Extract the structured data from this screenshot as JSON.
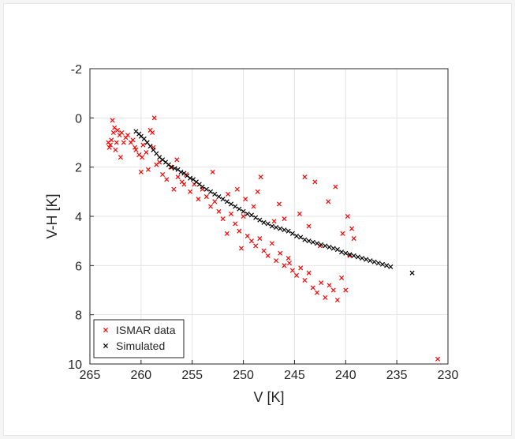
{
  "chart_data": {
    "type": "scatter",
    "xlabel": "V [K]",
    "ylabel": "V-H [K]",
    "xlim": [
      265,
      230
    ],
    "ylim": [
      -2,
      10
    ],
    "x_reversed": true,
    "y_reversed": true,
    "grid": true,
    "legend_placement": "bottom-left",
    "x_ticks": [
      "265",
      "260",
      "255",
      "250",
      "245",
      "240",
      "235",
      "230"
    ],
    "y_ticks": [
      "-2",
      "0",
      "2",
      "4",
      "6",
      "8",
      "10"
    ],
    "marker": "x",
    "series": [
      {
        "name": "ISMAR data",
        "color": "#ff0000",
        "x": [
          263.0,
          262.8,
          263.1,
          262.6,
          262.9,
          262.4,
          262.7,
          262.5,
          263.2,
          262.3,
          262.1,
          261.9,
          261.7,
          261.5,
          262.0,
          261.3,
          261.0,
          260.8,
          260.5,
          260.2,
          259.9,
          259.5,
          259.1,
          258.8,
          258.5,
          258.7,
          259.3,
          260.0,
          259.8,
          258.2,
          257.9,
          257.5,
          257.1,
          256.8,
          256.4,
          256.0,
          255.6,
          255.2,
          254.8,
          254.4,
          254.0,
          253.6,
          253.2,
          252.8,
          252.4,
          252.0,
          251.6,
          251.2,
          250.8,
          250.4,
          250.0,
          249.6,
          249.2,
          248.8,
          248.4,
          248.0,
          247.6,
          247.2,
          246.8,
          246.4,
          246.0,
          245.6,
          245.2,
          244.8,
          244.4,
          244.0,
          243.6,
          243.2,
          242.8,
          242.4,
          242.0,
          241.6,
          241.2,
          240.8,
          240.4,
          240.0,
          239.6,
          239.2,
          248.3,
          248.6,
          246.5,
          246.0,
          244.0,
          243.6,
          241.0,
          239.8,
          239.4,
          250.2,
          249.0,
          247.0,
          245.5,
          244.5,
          243.0,
          242.5,
          241.7,
          240.3,
          256.5,
          255.8,
          253.0,
          251.5,
          250.6,
          249.8,
          259.4,
          258.9,
          260.6,
          231.0
        ],
        "y": [
          1.1,
          0.1,
          1.2,
          0.4,
          0.9,
          1.0,
          0.6,
          1.3,
          1.0,
          0.5,
          0.7,
          0.6,
          1.0,
          0.8,
          1.6,
          0.7,
          1.0,
          0.9,
          1.3,
          1.5,
          1.6,
          1.4,
          0.5,
          1.2,
          1.9,
          0.0,
          2.1,
          2.2,
          1.1,
          1.8,
          2.3,
          2.5,
          2.0,
          2.9,
          2.4,
          2.6,
          2.3,
          3.0,
          2.7,
          3.3,
          2.9,
          3.2,
          3.6,
          3.4,
          3.8,
          4.1,
          4.7,
          3.9,
          4.3,
          4.6,
          4.0,
          4.8,
          5.0,
          5.2,
          4.9,
          5.4,
          5.6,
          5.1,
          5.8,
          5.5,
          6.0,
          5.7,
          6.2,
          6.4,
          6.1,
          6.6,
          6.3,
          6.9,
          7.1,
          6.7,
          7.3,
          6.8,
          7.0,
          7.4,
          6.5,
          7.0,
          5.6,
          4.9,
          2.4,
          3.0,
          3.5,
          4.1,
          2.4,
          4.4,
          2.8,
          4.0,
          4.5,
          5.3,
          3.6,
          4.2,
          5.9,
          3.9,
          2.6,
          5.2,
          3.4,
          4.7,
          1.7,
          2.7,
          2.2,
          3.1,
          2.9,
          3.3,
          1.0,
          0.6,
          1.2,
          9.8
        ]
      },
      {
        "name": "Simulated",
        "color": "#000000",
        "x": [
          260.5,
          260.2,
          260.0,
          259.7,
          259.4,
          259.1,
          258.8,
          258.5,
          258.2,
          257.9,
          257.6,
          257.3,
          257.0,
          256.7,
          256.4,
          256.1,
          255.8,
          255.5,
          255.2,
          254.9,
          254.6,
          254.3,
          254.0,
          253.6,
          253.2,
          252.8,
          252.4,
          252.0,
          251.6,
          251.2,
          250.8,
          250.4,
          250.0,
          249.6,
          249.2,
          248.8,
          248.4,
          248.0,
          247.6,
          247.2,
          246.8,
          246.4,
          246.0,
          245.6,
          245.2,
          244.8,
          244.4,
          244.0,
          243.6,
          243.2,
          242.8,
          242.4,
          242.0,
          241.6,
          241.2,
          240.8,
          240.4,
          240.0,
          239.6,
          239.2,
          238.8,
          238.4,
          238.0,
          237.6,
          237.2,
          236.8,
          236.4,
          236.0,
          235.6,
          233.5
        ],
        "y": [
          0.55,
          0.65,
          0.75,
          0.85,
          1.0,
          1.15,
          1.3,
          1.45,
          1.6,
          1.7,
          1.8,
          1.9,
          2.0,
          2.05,
          2.1,
          2.2,
          2.25,
          2.35,
          2.45,
          2.5,
          2.6,
          2.7,
          2.8,
          2.9,
          3.0,
          3.1,
          3.2,
          3.3,
          3.4,
          3.5,
          3.6,
          3.7,
          3.8,
          3.9,
          3.95,
          4.05,
          4.15,
          4.25,
          4.3,
          4.4,
          4.45,
          4.5,
          4.55,
          4.6,
          4.7,
          4.8,
          4.85,
          4.95,
          5.0,
          5.05,
          5.1,
          5.15,
          5.2,
          5.25,
          5.3,
          5.35,
          5.45,
          5.5,
          5.55,
          5.6,
          5.65,
          5.7,
          5.75,
          5.8,
          5.85,
          5.9,
          5.95,
          6.0,
          6.05,
          6.3
        ]
      }
    ]
  }
}
